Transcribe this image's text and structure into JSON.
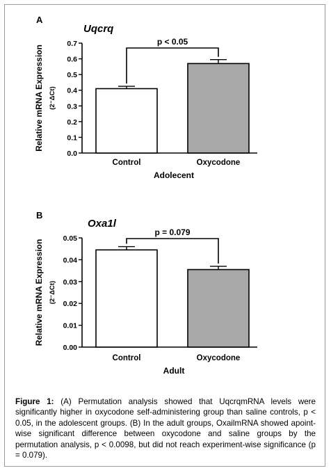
{
  "chart_data": [
    {
      "type": "bar",
      "panel_label": "A",
      "title": "Uqcrq",
      "ylabel_main": "Relative mRNA Expression",
      "ylabel_sub": "(2⁻ΔCt)",
      "xlabel": "Adolecent",
      "categories": [
        "Control",
        "Oxycodone"
      ],
      "values": [
        0.41,
        0.57
      ],
      "errors": [
        0.015,
        0.025
      ],
      "bar_colors": [
        "#ffffff",
        "#a8a8a8"
      ],
      "ylim": [
        0,
        0.7
      ],
      "yticks": [
        "0.0",
        "0.1",
        "0.2",
        "0.3",
        "0.4",
        "0.5",
        "0.6",
        "0.7"
      ],
      "annotation": "p < 0.05",
      "grid": false
    },
    {
      "type": "bar",
      "panel_label": "B",
      "title": "Oxa1l",
      "ylabel_main": "Relative mRNA Expression",
      "ylabel_sub": "(2⁻ΔCt)",
      "xlabel": "Adult",
      "categories": [
        "Control",
        "Oxycodone"
      ],
      "values": [
        0.0445,
        0.0355
      ],
      "errors": [
        0.0015,
        0.0015
      ],
      "bar_colors": [
        "#ffffff",
        "#a8a8a8"
      ],
      "ylim": [
        0,
        0.05
      ],
      "yticks": [
        "0.00",
        "0.01",
        "0.02",
        "0.03",
        "0.04",
        "0.05"
      ],
      "annotation": "p = 0.079",
      "grid": false
    }
  ],
  "caption": {
    "label": "Figure 1:",
    "text": " (A) Permutation analysis showed that UqcrqmRNA levels were significantly higher in oxycodone self-administering group than saline controls, p < 0.05, in the adolescent groups. (B) In the adult groups, OxailmRNA showed apoint-wise significant difference between oxycodone and saline groups by the permutation analysis, p < 0.0098, but did not reach experiment-wise significance (p = 0.079)."
  }
}
